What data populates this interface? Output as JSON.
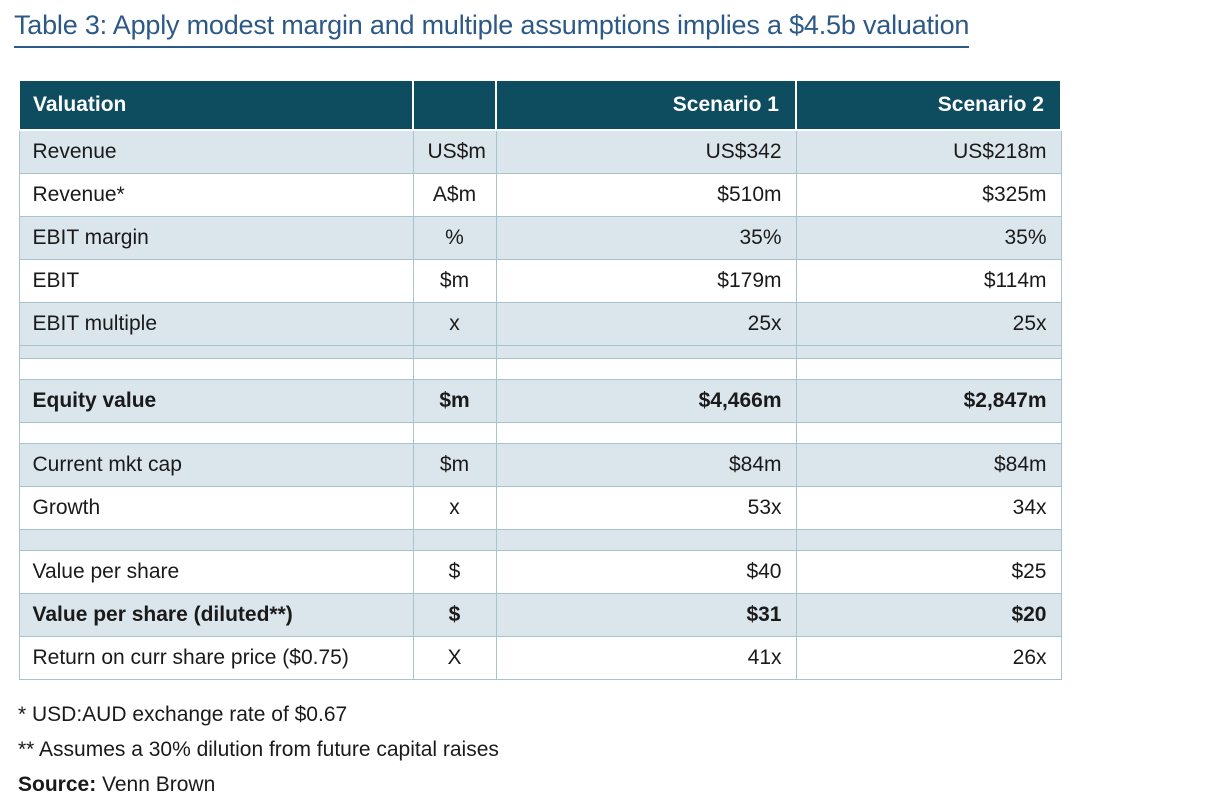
{
  "title": "Table 3: Apply modest margin and multiple assumptions implies a $4.5b valuation",
  "colors": {
    "header_bg": "#0e4c5f",
    "band_bg": "#dbe5ec",
    "cell_border": "#a9c2ce",
    "title_blue": "#2d5986"
  },
  "table": {
    "headers": [
      "Valuation",
      "",
      "Scenario 1",
      "Scenario 2"
    ],
    "rows": [
      {
        "label": "Revenue",
        "unit": "US$m",
        "s1": "US$342",
        "s2": "US$218m",
        "style": "band"
      },
      {
        "label": "Revenue*",
        "unit": "A$m",
        "s1": "$510m",
        "s2": "$325m",
        "style": "plain"
      },
      {
        "label": "EBIT margin",
        "unit": "%",
        "s1": "35%",
        "s2": "35%",
        "style": "band"
      },
      {
        "label": "EBIT",
        "unit": "$m",
        "s1": "$179m",
        "s2": "$114m",
        "style": "plain"
      },
      {
        "label": "EBIT multiple",
        "unit": "x",
        "s1": "25x",
        "s2": "25x",
        "style": "band"
      },
      {
        "style": "spacer-thin band"
      },
      {
        "style": "spacer plain"
      },
      {
        "label": "Equity value",
        "unit": "$m",
        "s1": "$4,466m",
        "s2": "$2,847m",
        "style": "band bold"
      },
      {
        "style": "spacer plain"
      },
      {
        "label": "Current mkt cap",
        "unit": "$m",
        "s1": "$84m",
        "s2": "$84m",
        "style": "band"
      },
      {
        "label": "Growth",
        "unit": "x",
        "s1": "53x",
        "s2": "34x",
        "style": "plain"
      },
      {
        "style": "spacer band"
      },
      {
        "label": "Value per share",
        "unit": "$",
        "s1": "$40",
        "s2": "$25",
        "style": "plain"
      },
      {
        "label": "Value per share (diluted**)",
        "unit": "$",
        "s1": "$31",
        "s2": "$20",
        "style": "band bold"
      },
      {
        "label": "Return on curr share price ($0.75)",
        "unit": "X",
        "s1": "41x",
        "s2": "26x",
        "style": "plain"
      }
    ]
  },
  "footnotes": [
    "* USD:AUD exchange rate of $0.67",
    "** Assumes a 30% dilution from future capital raises"
  ],
  "source": {
    "label": "Source:",
    "value": " Venn Brown"
  }
}
